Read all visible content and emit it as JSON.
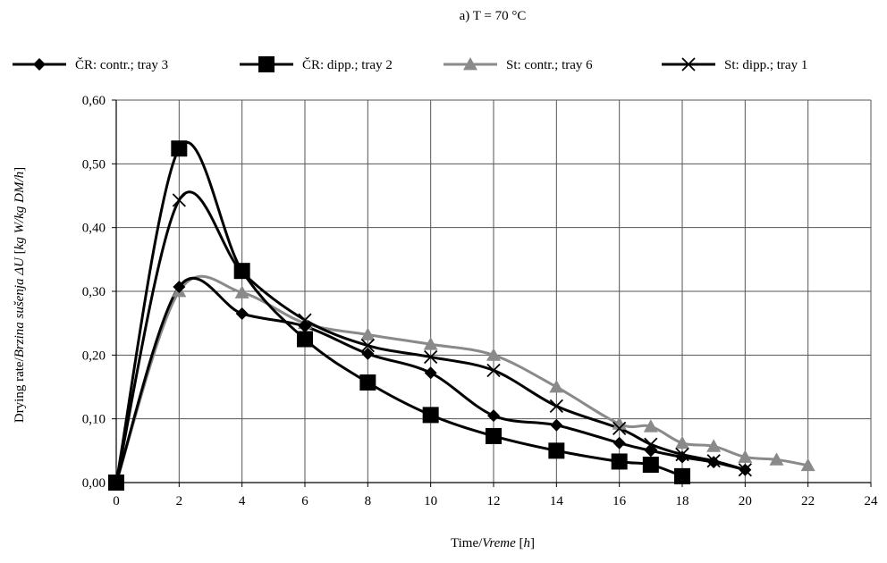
{
  "chart_data": {
    "type": "line",
    "title": "a) T = 70 °C",
    "xlabel_prefix": "Time/",
    "xlabel_italic": "Vreme",
    "xlabel_suffix_open": " [",
    "xlabel_unit": "h",
    "xlabel_suffix_close": "]",
    "ylabel_prefix": "Drying rate/",
    "ylabel_italic": "Brzina sušenja ΔU",
    "ylabel_unit_open": " [",
    "ylabel_unit": "kg W/kg DM/h",
    "ylabel_unit_close": "]",
    "xlim": [
      0,
      24
    ],
    "ylim": [
      0,
      0.6
    ],
    "x_ticks": [
      0,
      2,
      4,
      6,
      8,
      10,
      12,
      14,
      16,
      18,
      20,
      22,
      24
    ],
    "y_ticks": [
      0,
      0.1,
      0.2,
      0.3,
      0.4,
      0.5,
      0.6
    ],
    "y_tick_labels": [
      "0,00",
      "0,10",
      "0,20",
      "0,30",
      "0,40",
      "0,50",
      "0,60"
    ],
    "grid": true,
    "legend_position": "top",
    "series": [
      {
        "name": "ČR: contr.; tray 3",
        "marker": "diamond",
        "color": "#000000",
        "x": [
          0,
          2,
          4,
          6,
          8,
          10,
          12,
          14,
          16,
          17,
          18,
          19,
          20
        ],
        "y": [
          0,
          0.307,
          0.265,
          0.245,
          0.202,
          0.172,
          0.105,
          0.09,
          0.062,
          0.05,
          0.04,
          0.032,
          0.02
        ]
      },
      {
        "name": "ČR: dipp.; tray 2",
        "marker": "square",
        "color": "#000000",
        "x": [
          0,
          2,
          4,
          6,
          8,
          10,
          12,
          14,
          16,
          17,
          18
        ],
        "y": [
          0,
          0.524,
          0.332,
          0.225,
          0.157,
          0.106,
          0.073,
          0.05,
          0.033,
          0.028,
          0.01
        ]
      },
      {
        "name": "St: contr.; tray 6",
        "marker": "triangle",
        "color": "#8a8a8a",
        "x": [
          0,
          2,
          4,
          6,
          8,
          10,
          12,
          14,
          16,
          17,
          18,
          19,
          20,
          21,
          22
        ],
        "y": [
          0,
          0.3,
          0.298,
          0.25,
          0.232,
          0.217,
          0.2,
          0.15,
          0.092,
          0.088,
          0.062,
          0.057,
          0.04,
          0.036,
          0.027
        ]
      },
      {
        "name": "St: dipp.; tray 1",
        "marker": "x",
        "color": "#000000",
        "x": [
          0,
          2,
          4,
          6,
          8,
          10,
          12,
          14,
          16,
          17,
          18,
          19,
          20
        ],
        "y": [
          0,
          0.443,
          0.33,
          0.255,
          0.215,
          0.197,
          0.176,
          0.12,
          0.085,
          0.06,
          0.044,
          0.034,
          0.02
        ]
      }
    ]
  }
}
